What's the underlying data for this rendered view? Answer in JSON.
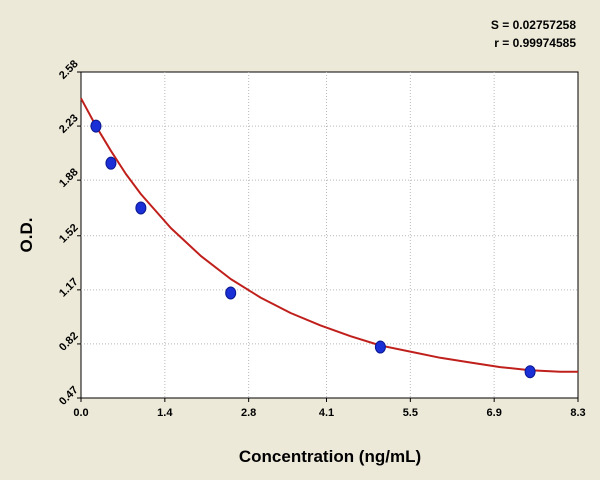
{
  "stats": {
    "s_label": "S = 0.02757258",
    "r_label": "r = 0.99974585"
  },
  "chart_data": {
    "type": "scatter",
    "title": "",
    "xlabel": "Concentration (ng/mL)",
    "ylabel": "O.D.",
    "xlim": [
      0.0,
      8.3
    ],
    "ylim": [
      0.47,
      2.58
    ],
    "x_ticks": [
      0.0,
      1.4,
      2.8,
      4.1,
      5.5,
      6.9,
      8.3
    ],
    "x_tick_labels": [
      "0.0",
      "1.4",
      "2.8",
      "4.1",
      "5.5",
      "6.9",
      "8.3"
    ],
    "y_ticks": [
      0.47,
      0.82,
      1.17,
      1.52,
      1.88,
      2.23,
      2.58
    ],
    "y_tick_labels": [
      "0.47",
      "0.82",
      "1.17",
      "1.52",
      "1.88",
      "2.23",
      "2.58"
    ],
    "grid": true,
    "series": [
      {
        "points": [
          {
            "x": 0.25,
            "y": 2.23
          },
          {
            "x": 0.5,
            "y": 1.99
          },
          {
            "x": 1.0,
            "y": 1.7
          },
          {
            "x": 2.5,
            "y": 1.15
          },
          {
            "x": 5.0,
            "y": 0.8
          },
          {
            "x": 7.5,
            "y": 0.64
          }
        ],
        "color": "#1a2fd6"
      }
    ],
    "fit_curve": {
      "color": "#c0201c",
      "points": [
        {
          "x": 0.0,
          "y": 2.41
        },
        {
          "x": 0.25,
          "y": 2.23
        },
        {
          "x": 0.5,
          "y": 2.07
        },
        {
          "x": 0.75,
          "y": 1.92
        },
        {
          "x": 1.0,
          "y": 1.79
        },
        {
          "x": 1.5,
          "y": 1.57
        },
        {
          "x": 2.0,
          "y": 1.39
        },
        {
          "x": 2.5,
          "y": 1.24
        },
        {
          "x": 3.0,
          "y": 1.12
        },
        {
          "x": 3.5,
          "y": 1.02
        },
        {
          "x": 4.0,
          "y": 0.94
        },
        {
          "x": 4.5,
          "y": 0.87
        },
        {
          "x": 5.0,
          "y": 0.81
        },
        {
          "x": 5.5,
          "y": 0.77
        },
        {
          "x": 6.0,
          "y": 0.73
        },
        {
          "x": 6.5,
          "y": 0.7
        },
        {
          "x": 7.0,
          "y": 0.67
        },
        {
          "x": 7.5,
          "y": 0.65
        },
        {
          "x": 8.0,
          "y": 0.64
        },
        {
          "x": 8.3,
          "y": 0.64
        }
      ]
    }
  }
}
